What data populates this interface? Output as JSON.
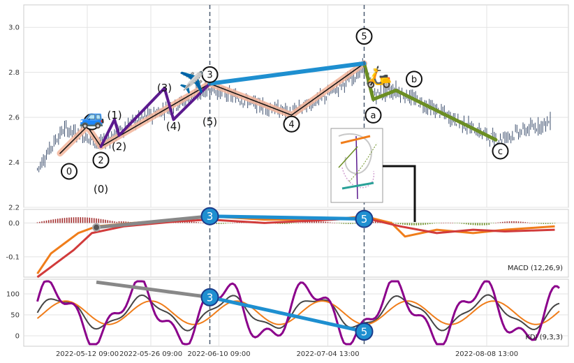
{
  "chart_data": [
    {
      "type": "candlestick",
      "panel": "price",
      "ylim": [
        2.2,
        3.1
      ],
      "yticks": [
        "2.2",
        "2.4",
        "2.6",
        "2.8",
        "3.0"
      ],
      "xlim_days": [
        "2022-04-28",
        "2022-08-26"
      ],
      "candle_color": "#3d4f6e",
      "wave_labels": [
        {
          "text": "0",
          "x": "2022-05-08",
          "y": 2.36,
          "circle": true
        },
        {
          "text": "(0)",
          "x": "2022-05-15",
          "y": 2.28,
          "circle": false
        },
        {
          "text": "1",
          "x": "2022-05-13",
          "y": 2.58,
          "circle": true
        },
        {
          "text": "2",
          "x": "2022-05-15",
          "y": 2.41,
          "circle": true
        },
        {
          "text": "(1)",
          "x": "2022-05-18",
          "y": 2.61,
          "circle": false
        },
        {
          "text": "(2)",
          "x": "2022-05-19",
          "y": 2.47,
          "circle": false
        },
        {
          "text": "(3)",
          "x": "2022-05-29",
          "y": 2.73,
          "circle": false
        },
        {
          "text": "(4)",
          "x": "2022-05-31",
          "y": 2.56,
          "circle": false
        },
        {
          "text": "3",
          "x": "2022-06-08",
          "y": 2.79,
          "circle": true
        },
        {
          "text": "(5)",
          "x": "2022-06-08",
          "y": 2.58,
          "circle": false
        },
        {
          "text": "4",
          "x": "2022-06-26",
          "y": 2.57,
          "circle": true
        },
        {
          "text": "5",
          "x": "2022-07-12",
          "y": 2.96,
          "circle": true
        },
        {
          "text": "a",
          "x": "2022-07-14",
          "y": 2.61,
          "circle": true
        },
        {
          "text": "b",
          "x": "2022-07-23",
          "y": 2.77,
          "circle": true
        },
        {
          "text": "c",
          "x": "2022-08-11",
          "y": 2.45,
          "circle": true
        }
      ],
      "wave_paths": [
        {
          "name": "primary",
          "color": "#f2b49a",
          "points": [
            [
              "2022-05-06",
              2.44
            ],
            [
              "2022-05-12",
              2.56
            ],
            [
              "2022-05-15",
              2.47
            ],
            [
              "2022-06-08",
              2.75
            ],
            [
              "2022-06-26",
              2.61
            ],
            [
              "2022-07-12",
              2.84
            ]
          ]
        },
        {
          "name": "primary-core",
          "color": "#111111",
          "points": [
            [
              "2022-05-06",
              2.44
            ],
            [
              "2022-05-12",
              2.56
            ],
            [
              "2022-05-15",
              2.47
            ],
            [
              "2022-06-08",
              2.75
            ],
            [
              "2022-06-26",
              2.61
            ],
            [
              "2022-07-12",
              2.84
            ]
          ]
        },
        {
          "name": "intermediate",
          "color": "#5b1a8e",
          "points": [
            [
              "2022-05-15",
              2.47
            ],
            [
              "2022-05-18",
              2.59
            ],
            [
              "2022-05-19",
              2.52
            ],
            [
              "2022-05-29",
              2.73
            ],
            [
              "2022-05-31",
              2.59
            ],
            [
              "2022-06-08",
              2.75
            ]
          ]
        },
        {
          "name": "correction",
          "color": "#6b8e23",
          "points": [
            [
              "2022-07-12",
              2.84
            ],
            [
              "2022-07-14",
              2.68
            ],
            [
              "2022-07-19",
              2.72
            ],
            [
              "2022-08-10",
              2.5
            ]
          ]
        },
        {
          "name": "divergence",
          "color": "#1e8fd0",
          "points": [
            [
              "2022-06-08",
              2.75
            ],
            [
              "2022-07-12",
              2.84
            ]
          ]
        }
      ],
      "vlines": [
        "2022-06-08",
        "2022-07-12"
      ]
    },
    {
      "type": "line",
      "panel": "macd",
      "label": "MACD (12,26,9)",
      "ylim": [
        -0.16,
        0.04
      ],
      "yticks": [
        "-0.1",
        "0.0"
      ],
      "series": [
        {
          "color": "#f07d1a",
          "points": [
            [
              "2022-05-01",
              -0.15
            ],
            [
              "2022-05-04",
              -0.09
            ],
            [
              "2022-05-07",
              -0.06
            ],
            [
              "2022-05-10",
              -0.03
            ],
            [
              "2022-05-14",
              -0.01
            ],
            [
              "2022-05-22",
              0.0
            ],
            [
              "2022-06-01",
              0.01
            ],
            [
              "2022-06-08",
              0.02
            ],
            [
              "2022-06-20",
              0.01
            ],
            [
              "2022-07-05",
              0.01
            ],
            [
              "2022-07-12",
              0.02
            ],
            [
              "2022-07-18",
              0.0
            ],
            [
              "2022-07-21",
              -0.04
            ],
            [
              "2022-07-28",
              -0.02
            ],
            [
              "2022-08-05",
              -0.03
            ],
            [
              "2022-08-12",
              -0.02
            ],
            [
              "2022-08-23",
              -0.01
            ]
          ]
        },
        {
          "color": "#d13b3b",
          "points": [
            [
              "2022-05-01",
              -0.16
            ],
            [
              "2022-05-05",
              -0.12
            ],
            [
              "2022-05-09",
              -0.08
            ],
            [
              "2022-05-13",
              -0.03
            ],
            [
              "2022-05-20",
              -0.01
            ],
            [
              "2022-06-01",
              0.005
            ],
            [
              "2022-06-08",
              0.01
            ],
            [
              "2022-06-20",
              0.0
            ],
            [
              "2022-07-05",
              0.01
            ],
            [
              "2022-07-12",
              0.015
            ],
            [
              "2022-07-20",
              -0.01
            ],
            [
              "2022-07-28",
              -0.03
            ],
            [
              "2022-08-05",
              -0.02
            ],
            [
              "2022-08-12",
              -0.025
            ],
            [
              "2022-08-23",
              -0.02
            ]
          ]
        }
      ],
      "divergence_lines": [
        {
          "color": "#888888",
          "points": [
            [
              "2022-05-14",
              -0.013
            ],
            [
              "2022-06-08",
              0.02
            ]
          ]
        },
        {
          "color": "#1e8fd0",
          "points": [
            [
              "2022-06-08",
              0.02
            ],
            [
              "2022-07-12",
              0.012
            ]
          ]
        }
      ],
      "markers": [
        {
          "text": "3",
          "x": "2022-06-08",
          "y": 0.02
        },
        {
          "text": "5",
          "x": "2022-07-12",
          "y": 0.012
        }
      ]
    },
    {
      "type": "line",
      "panel": "kdj",
      "label": "KDJ (9,3,3)",
      "ylim": [
        -25,
        135
      ],
      "yticks": [
        "0",
        "50",
        "100"
      ],
      "series": [
        {
          "name": "K",
          "color": "#444444"
        },
        {
          "name": "D",
          "color": "#f07d1a"
        },
        {
          "name": "J",
          "color": "#8b008b"
        }
      ],
      "divergence_lines": [
        {
          "color": "#888888",
          "points": [
            [
              "2022-05-14",
              128
            ],
            [
              "2022-06-08",
              92
            ]
          ]
        },
        {
          "color": "#1e8fd0",
          "points": [
            [
              "2022-06-08",
              92
            ],
            [
              "2022-07-12",
              10
            ]
          ]
        }
      ],
      "markers": [
        {
          "text": "3",
          "x": "2022-06-08",
          "y": 92
        },
        {
          "text": "5",
          "x": "2022-07-12",
          "y": 10
        }
      ]
    }
  ],
  "x_tick_labels": [
    "2022-05-12 09:00",
    "2022-05-26 09:00",
    "2022-06-10 09:00",
    "2022-07-04 13:00",
    "2022-08-08 13:00"
  ],
  "x_tick_dates": [
    "2022-05-12",
    "2022-05-26",
    "2022-06-10",
    "2022-07-04",
    "2022-08-08"
  ],
  "icons": [
    "car-emoji",
    "airplane-emoji",
    "scooter-emoji"
  ]
}
